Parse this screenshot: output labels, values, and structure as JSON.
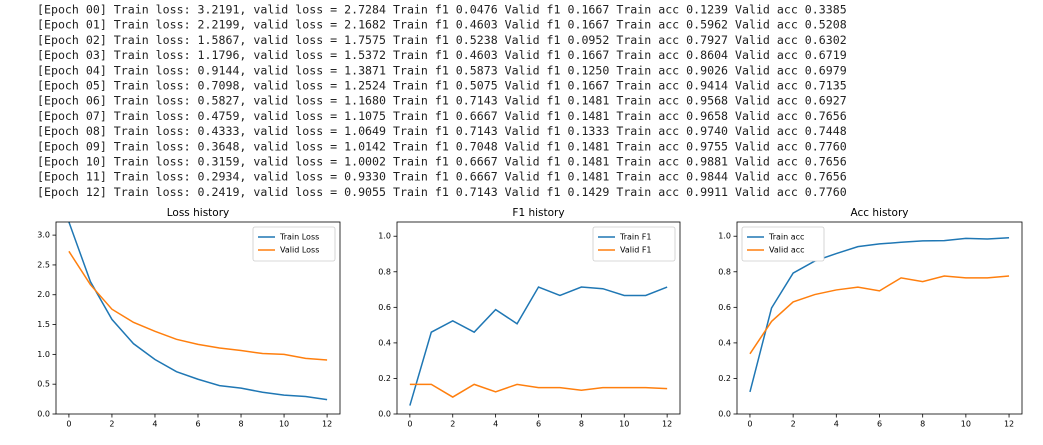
{
  "log": [
    "[Epoch 00] Train loss: 3.2191, valid loss = 2.7284 Train f1 0.0476 Valid f1 0.1667 Train acc 0.1239 Valid acc 0.3385",
    "[Epoch 01] Train loss: 2.2199, valid loss = 2.1682 Train f1 0.4603 Valid f1 0.1667 Train acc 0.5962 Valid acc 0.5208",
    "[Epoch 02] Train loss: 1.5867, valid loss = 1.7575 Train f1 0.5238 Valid f1 0.0952 Train acc 0.7927 Valid acc 0.6302",
    "[Epoch 03] Train loss: 1.1796, valid loss = 1.5372 Train f1 0.4603 Valid f1 0.1667 Train acc 0.8604 Valid acc 0.6719",
    "[Epoch 04] Train loss: 0.9144, valid loss = 1.3871 Train f1 0.5873 Valid f1 0.1250 Train acc 0.9026 Valid acc 0.6979",
    "[Epoch 05] Train loss: 0.7098, valid loss = 1.2524 Train f1 0.5075 Valid f1 0.1667 Train acc 0.9414 Valid acc 0.7135",
    "[Epoch 06] Train loss: 0.5827, valid loss = 1.1680 Train f1 0.7143 Valid f1 0.1481 Train acc 0.9568 Valid acc 0.6927",
    "[Epoch 07] Train loss: 0.4759, valid loss = 1.1075 Train f1 0.6667 Valid f1 0.1481 Train acc 0.9658 Valid acc 0.7656",
    "[Epoch 08] Train loss: 0.4333, valid loss = 1.0649 Train f1 0.7143 Valid f1 0.1333 Train acc 0.9740 Valid acc 0.7448",
    "[Epoch 09] Train loss: 0.3648, valid loss = 1.0142 Train f1 0.7048 Valid f1 0.1481 Train acc 0.9755 Valid acc 0.7760",
    "[Epoch 10] Train loss: 0.3159, valid loss = 1.0002 Train f1 0.6667 Valid f1 0.1481 Train acc 0.9881 Valid acc 0.7656",
    "[Epoch 11] Train loss: 0.2934, valid loss = 0.9330 Train f1 0.6667 Valid f1 0.1481 Train acc 0.9844 Valid acc 0.7656",
    "[Epoch 12] Train loss: 0.2419, valid loss = 0.9055 Train f1 0.7143 Valid f1 0.1429 Train acc 0.9911 Valid acc 0.7760"
  ],
  "chart_data": [
    {
      "type": "line",
      "title": "Loss history",
      "x": [
        0,
        1,
        2,
        3,
        4,
        5,
        6,
        7,
        8,
        9,
        10,
        11,
        12
      ],
      "xlim": [
        -0.6,
        12.6
      ],
      "xticks": [
        0,
        2,
        4,
        6,
        8,
        10,
        12
      ],
      "ylim": [
        0,
        3.22
      ],
      "yticks": [
        {
          "value": 0,
          "label": "0.0"
        },
        {
          "value": 0.5,
          "label": "0.5"
        },
        {
          "value": 1,
          "label": "1.0"
        },
        {
          "value": 1.5,
          "label": "1.5"
        },
        {
          "value": 2,
          "label": "2.0"
        },
        {
          "value": 2.5,
          "label": "2.5"
        },
        {
          "value": 3,
          "label": "3.0"
        }
      ],
      "legend": "upper-right",
      "series": [
        {
          "name": "Train Loss",
          "color": "#1f77b4",
          "values": [
            3.2191,
            2.2199,
            1.5867,
            1.1796,
            0.9144,
            0.7098,
            0.5827,
            0.4759,
            0.4333,
            0.3648,
            0.3159,
            0.2934,
            0.2419
          ]
        },
        {
          "name": "Valid Loss",
          "color": "#ff7f0e",
          "values": [
            2.7284,
            2.1682,
            1.7575,
            1.5372,
            1.3871,
            1.2524,
            1.168,
            1.1075,
            1.0649,
            1.0142,
            1.0002,
            0.933,
            0.9055
          ]
        }
      ]
    },
    {
      "type": "line",
      "title": "F1 history",
      "x": [
        0,
        1,
        2,
        3,
        4,
        5,
        6,
        7,
        8,
        9,
        10,
        11,
        12
      ],
      "xlim": [
        -0.6,
        12.6
      ],
      "xticks": [
        0,
        2,
        4,
        6,
        8,
        10,
        12
      ],
      "ylim": [
        0,
        1.08
      ],
      "yticks": [
        {
          "value": 0,
          "label": "0.0"
        },
        {
          "value": 0.2,
          "label": "0.2"
        },
        {
          "value": 0.4,
          "label": "0.4"
        },
        {
          "value": 0.6,
          "label": "0.6"
        },
        {
          "value": 0.8,
          "label": "0.8"
        },
        {
          "value": 1,
          "label": "1.0"
        }
      ],
      "legend": "upper-right",
      "series": [
        {
          "name": "Train F1",
          "color": "#1f77b4",
          "values": [
            0.0476,
            0.4603,
            0.5238,
            0.4603,
            0.5873,
            0.5075,
            0.7143,
            0.6667,
            0.7143,
            0.7048,
            0.6667,
            0.6667,
            0.7143
          ]
        },
        {
          "name": "Valid F1",
          "color": "#ff7f0e",
          "values": [
            0.1667,
            0.1667,
            0.0952,
            0.1667,
            0.125,
            0.1667,
            0.1481,
            0.1481,
            0.1333,
            0.1481,
            0.1481,
            0.1481,
            0.1429
          ]
        }
      ]
    },
    {
      "type": "line",
      "title": "Acc history",
      "x": [
        0,
        1,
        2,
        3,
        4,
        5,
        6,
        7,
        8,
        9,
        10,
        11,
        12
      ],
      "xlim": [
        -0.6,
        12.6
      ],
      "xticks": [
        0,
        2,
        4,
        6,
        8,
        10,
        12
      ],
      "ylim": [
        0,
        1.08
      ],
      "yticks": [
        {
          "value": 0,
          "label": "0.0"
        },
        {
          "value": 0.2,
          "label": "0.2"
        },
        {
          "value": 0.4,
          "label": "0.4"
        },
        {
          "value": 0.6,
          "label": "0.6"
        },
        {
          "value": 0.8,
          "label": "0.8"
        },
        {
          "value": 1,
          "label": "1.0"
        }
      ],
      "legend": "upper-left",
      "series": [
        {
          "name": "Train acc",
          "color": "#1f77b4",
          "values": [
            0.1239,
            0.5962,
            0.7927,
            0.8604,
            0.9026,
            0.9414,
            0.9568,
            0.9658,
            0.974,
            0.9755,
            0.9881,
            0.9844,
            0.9911
          ]
        },
        {
          "name": "Valid acc",
          "color": "#ff7f0e",
          "values": [
            0.3385,
            0.5208,
            0.6302,
            0.6719,
            0.6979,
            0.7135,
            0.6927,
            0.7656,
            0.7448,
            0.776,
            0.7656,
            0.7656,
            0.776
          ]
        }
      ]
    }
  ]
}
